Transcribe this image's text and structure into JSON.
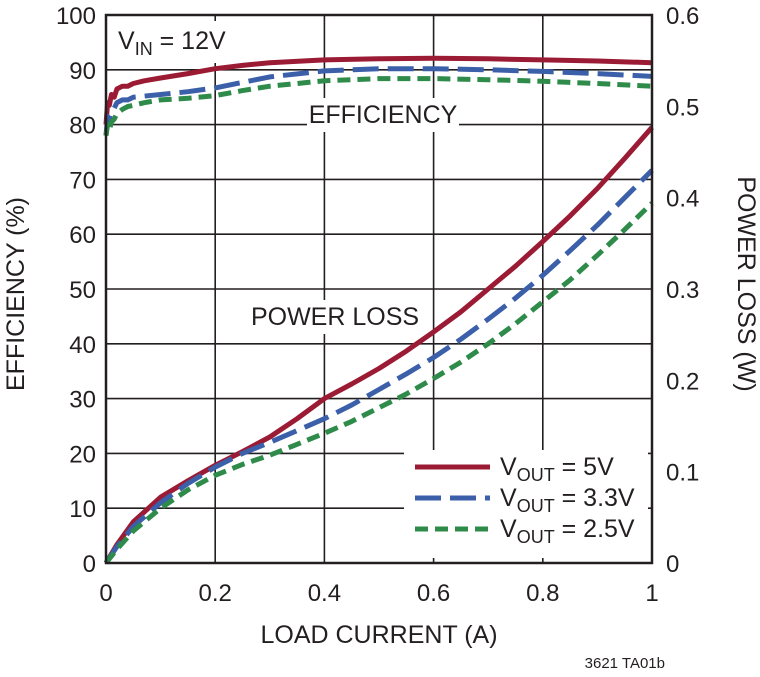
{
  "chart_data": {
    "type": "line",
    "xlabel": "LOAD CURRENT (A)",
    "ylabel_left": "EFFICIENCY (%)",
    "ylabel_right": "POWER LOSS (W)",
    "xlim": [
      0,
      1
    ],
    "ylim_left": [
      0,
      100
    ],
    "ylim_right": [
      0,
      0.6
    ],
    "x_ticks": [
      "0",
      "0.2",
      "0.4",
      "0.6",
      "0.8",
      "1"
    ],
    "y_ticks_left": [
      "0",
      "10",
      "20",
      "30",
      "40",
      "50",
      "60",
      "70",
      "80",
      "90",
      "100"
    ],
    "y_ticks_right": [
      "0",
      "0.1",
      "0.2",
      "0.3",
      "0.4",
      "0.5",
      "0.6"
    ],
    "grid": true,
    "legend_position": "bottom-right",
    "annotations": {
      "vin_main": "V",
      "vin_sub": "IN",
      "vin_rest": " = 12V",
      "efficiency": "EFFICIENCY",
      "power_loss": "POWER LOSS"
    },
    "legend": [
      {
        "main": "V",
        "sub": "OUT",
        "rest": " = 5V"
      },
      {
        "main": "V",
        "sub": "OUT",
        "rest": " = 3.3V"
      },
      {
        "main": "V",
        "sub": "OUT",
        "rest": " = 2.5V"
      }
    ],
    "series": [
      {
        "name": "VOUT = 5V",
        "color": "#9b1b35",
        "dash": "solid",
        "efficiency": {
          "x": [
            0,
            0.003,
            0.006,
            0.01,
            0.015,
            0.02,
            0.03,
            0.04,
            0.05,
            0.07,
            0.1,
            0.15,
            0.2,
            0.25,
            0.3,
            0.4,
            0.5,
            0.6,
            0.7,
            0.8,
            0.9,
            1.0
          ],
          "y": [
            80,
            84,
            83.5,
            85.5,
            85,
            86.5,
            87,
            87,
            87.5,
            88,
            88.5,
            89.3,
            90.2,
            90.8,
            91.3,
            91.8,
            92.0,
            92.1,
            92.0,
            91.8,
            91.6,
            91.3
          ]
        },
        "power_loss": {
          "x": [
            0,
            0.02,
            0.05,
            0.1,
            0.15,
            0.2,
            0.25,
            0.3,
            0.35,
            0.4,
            0.45,
            0.5,
            0.55,
            0.6,
            0.65,
            0.7,
            0.75,
            0.8,
            0.85,
            0.9,
            0.95,
            1.0
          ],
          "y": [
            0,
            0.02,
            0.045,
            0.072,
            0.09,
            0.107,
            0.122,
            0.138,
            0.158,
            0.18,
            0.196,
            0.213,
            0.232,
            0.253,
            0.275,
            0.3,
            0.325,
            0.352,
            0.38,
            0.41,
            0.443,
            0.477
          ]
        }
      },
      {
        "name": "VOUT = 3.3V",
        "color": "#3b5fa9",
        "dash": "long-dash",
        "efficiency": {
          "x": [
            0,
            0.003,
            0.006,
            0.01,
            0.015,
            0.02,
            0.03,
            0.04,
            0.05,
            0.07,
            0.1,
            0.15,
            0.2,
            0.25,
            0.3,
            0.4,
            0.5,
            0.6,
            0.7,
            0.8,
            0.9,
            1.0
          ],
          "y": [
            78,
            81.5,
            81,
            82.5,
            83,
            84,
            84.5,
            84.5,
            85,
            85.2,
            85.5,
            86,
            86.7,
            87.7,
            88.7,
            89.8,
            90.2,
            90.2,
            90.0,
            89.7,
            89.3,
            88.8
          ]
        },
        "power_loss": {
          "x": [
            0,
            0.02,
            0.05,
            0.1,
            0.15,
            0.2,
            0.25,
            0.3,
            0.35,
            0.4,
            0.45,
            0.5,
            0.55,
            0.6,
            0.65,
            0.7,
            0.75,
            0.8,
            0.85,
            0.9,
            0.95,
            1.0
          ],
          "y": [
            0,
            0.018,
            0.04,
            0.066,
            0.087,
            0.105,
            0.12,
            0.132,
            0.145,
            0.158,
            0.173,
            0.19,
            0.207,
            0.225,
            0.245,
            0.267,
            0.29,
            0.315,
            0.342,
            0.37,
            0.4,
            0.43
          ]
        }
      },
      {
        "name": "VOUT = 2.5V",
        "color": "#2e8b4a",
        "dash": "short-dash",
        "efficiency": {
          "x": [
            0,
            0.003,
            0.006,
            0.01,
            0.015,
            0.02,
            0.03,
            0.04,
            0.05,
            0.07,
            0.1,
            0.15,
            0.2,
            0.25,
            0.3,
            0.4,
            0.5,
            0.6,
            0.7,
            0.8,
            0.9,
            1.0
          ],
          "y": [
            78,
            80,
            79,
            80.5,
            81,
            82,
            82.8,
            83.3,
            83.5,
            84,
            84.5,
            84.8,
            85.3,
            86.2,
            87.0,
            88.0,
            88.4,
            88.4,
            88.2,
            87.9,
            87.5,
            87.0
          ]
        },
        "power_loss": {
          "x": [
            0,
            0.02,
            0.05,
            0.1,
            0.15,
            0.2,
            0.25,
            0.3,
            0.35,
            0.4,
            0.45,
            0.5,
            0.55,
            0.6,
            0.65,
            0.7,
            0.75,
            0.8,
            0.85,
            0.9,
            0.95,
            1.0
          ],
          "y": [
            0,
            0.015,
            0.035,
            0.06,
            0.08,
            0.096,
            0.108,
            0.118,
            0.13,
            0.142,
            0.155,
            0.17,
            0.185,
            0.202,
            0.22,
            0.24,
            0.262,
            0.286,
            0.31,
            0.337,
            0.365,
            0.394
          ]
        }
      }
    ]
  },
  "figure_id": "3621 TA01b"
}
